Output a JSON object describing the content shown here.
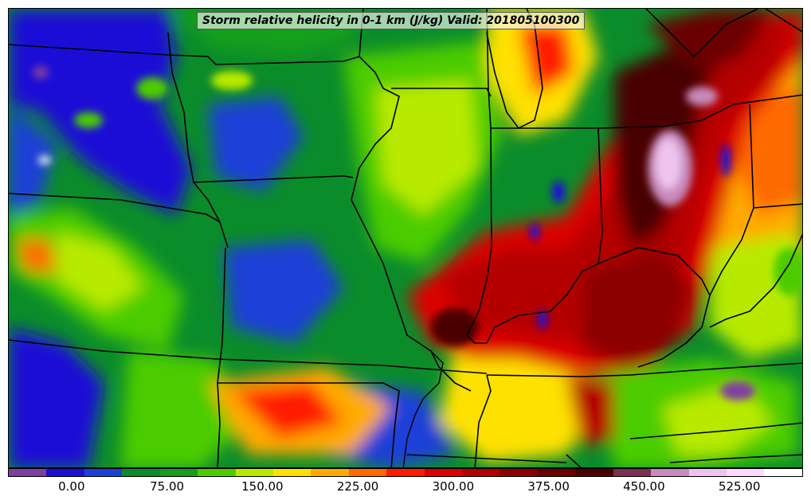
{
  "title": "Storm relative helicity in 0-1 km (J/kg) Valid: 201805100300",
  "colorbar": {
    "colors": [
      "#7f3fa0",
      "#1a10d6",
      "#1a40d8",
      "#0b8c2a",
      "#169e1c",
      "#4ccc00",
      "#b8ea00",
      "#ffe100",
      "#ffaa00",
      "#ff6a00",
      "#ff1a00",
      "#dd0000",
      "#b50000",
      "#8c0000",
      "#6a0000",
      "#4a0000",
      "#7d3050",
      "#c88abc",
      "#eec4ee",
      "#ffd8ff",
      "#ffffff"
    ],
    "tick_labels": [
      "0.00",
      "75.00",
      "150.00",
      "225.00",
      "300.00",
      "375.00",
      "450.00",
      "525.00"
    ],
    "tick_values": [
      0,
      75,
      150,
      225,
      300,
      375,
      450,
      525
    ],
    "range": [
      -50,
      575
    ]
  },
  "map": {
    "field": "Storm relative helicity in 0-1 km",
    "units": "J/kg",
    "valid_time": "201805100300"
  }
}
